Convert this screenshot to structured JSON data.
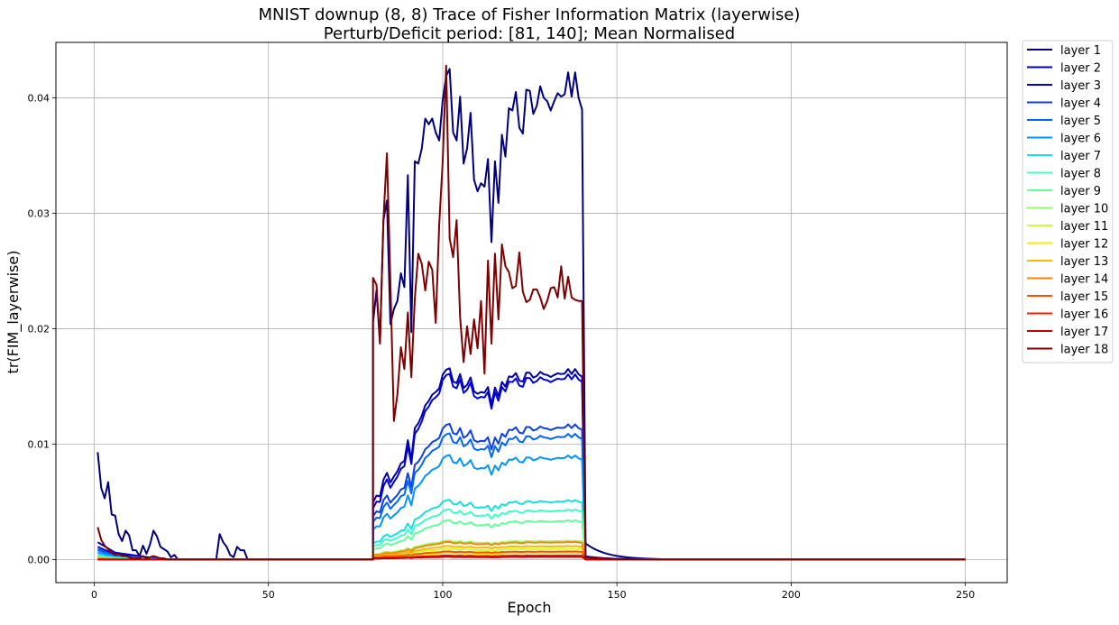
{
  "chart_data": {
    "type": "line",
    "title": "MNIST downup (8, 8) Trace of Fisher Information Matrix (layerwise)",
    "subtitle": "Perturb/Deficit period: [81, 140]; Mean Normalised",
    "xlabel": "Epoch",
    "ylabel": "tr(FIM_layerwise)",
    "xlim": [
      -11,
      262
    ],
    "ylim": [
      -0.002,
      0.0448
    ],
    "x_ticks": [
      0,
      50,
      100,
      150,
      200,
      250
    ],
    "x_tick_labels": [
      "0",
      "50",
      "100",
      "150",
      "200",
      "250"
    ],
    "y_ticks": [
      0.0,
      0.01,
      0.02,
      0.03,
      0.04
    ],
    "y_tick_labels": [
      "0.00",
      "0.01",
      "0.02",
      "0.03",
      "0.04"
    ],
    "grid": true,
    "legend_position": "outside-right",
    "deficit_period": [
      81,
      140
    ],
    "epochs": [
      1,
      250
    ],
    "series": [
      {
        "name": "layer 1",
        "color": "#00007f",
        "phase1": [
          [
            1,
            0.0093
          ],
          [
            2,
            0.0062
          ],
          [
            3,
            0.0053
          ],
          [
            4,
            0.0067
          ],
          [
            5,
            0.0039
          ],
          [
            6,
            0.0038
          ],
          [
            7,
            0.0022
          ],
          [
            8,
            0.0016
          ],
          [
            9,
            0.0025
          ],
          [
            10,
            0.0021
          ],
          [
            11,
            0.0008
          ],
          [
            12,
            0.0008
          ],
          [
            13,
            0.0003
          ],
          [
            14,
            0.0012
          ],
          [
            15,
            0.0005
          ],
          [
            16,
            0.0013
          ],
          [
            17,
            0.0025
          ],
          [
            18,
            0.002
          ],
          [
            19,
            0.0011
          ],
          [
            20,
            0.0009
          ],
          [
            21,
            0.0007
          ],
          [
            22,
            0.0002
          ],
          [
            23,
            0.0004
          ],
          [
            24,
            0.0
          ],
          [
            35,
            0.0
          ],
          [
            36,
            0.0022
          ],
          [
            37,
            0.0015
          ],
          [
            38,
            0.0011
          ],
          [
            39,
            0.0004
          ],
          [
            40,
            0.0002
          ],
          [
            41,
            0.0011
          ],
          [
            42,
            0.0008
          ],
          [
            43,
            0.0008
          ],
          [
            44,
            0.0
          ],
          [
            80,
            0.0
          ]
        ],
        "deficit": [
          0.0205,
          0.0233,
          0.0188,
          0.0294,
          0.0311,
          0.0204,
          0.0217,
          0.0224,
          0.0248,
          0.0236,
          0.0333,
          0.0197,
          0.0345,
          0.0343,
          0.0356,
          0.0382,
          0.0377,
          0.0382,
          0.037,
          0.0363,
          0.0398,
          0.0419,
          0.0425,
          0.037,
          0.0363,
          0.0401,
          0.0343,
          0.0356,
          0.0387,
          0.0329,
          0.0319,
          0.0326,
          0.0323,
          0.0347,
          0.0275,
          0.0345,
          0.0309,
          0.0368,
          0.0349,
          0.0391,
          0.0389,
          0.0405,
          0.0374,
          0.0369,
          0.0407,
          0.0406,
          0.0386,
          0.0393,
          0.041,
          0.04,
          0.0397,
          0.0389,
          0.0397,
          0.0404,
          0.0401,
          0.0403,
          0.0422,
          0.0401,
          0.0422,
          0.04,
          0.039
        ],
        "recovery_start": 0.0014
      },
      {
        "name": "layer 2",
        "color": "#0000ab",
        "phase1_base": 0.0015,
        "deficit_base": 0.0058,
        "plateau": 0.0141
      },
      {
        "name": "layer 3",
        "color": "#0000d8",
        "phase1_base": 0.0011,
        "deficit_base": 0.0052,
        "plateau": 0.0137
      },
      {
        "name": "layer 4",
        "color": "#0d3fe6",
        "phase1_base": 0.0009,
        "deficit_base": 0.0044,
        "plateau": 0.01
      },
      {
        "name": "layer 5",
        "color": "#0066ff",
        "phase1_base": 0.0008,
        "deficit_base": 0.0038,
        "plateau": 0.0093
      },
      {
        "name": "layer 6",
        "color": "#0096ff",
        "phase1_base": 0.0006,
        "deficit_base": 0.003,
        "plateau": 0.0077
      },
      {
        "name": "layer 7",
        "color": "#16e0e0",
        "phase1_base": 0.0004,
        "deficit_base": 0.0016,
        "plateau": 0.0044
      },
      {
        "name": "layer 8",
        "color": "#3cffc9",
        "phase1_base": 0.0003,
        "deficit_base": 0.0013,
        "plateau": 0.0037
      },
      {
        "name": "layer 9",
        "color": "#62ff9c",
        "phase1_base": 0.0002,
        "deficit_base": 0.001,
        "plateau": 0.0029
      },
      {
        "name": "layer 10",
        "color": "#93ff66",
        "phase1_base": 0.0001,
        "deficit_base": 0.0005,
        "plateau": 0.0014
      },
      {
        "name": "layer 11",
        "color": "#c9ff2f",
        "phase1_base": 0.0001,
        "deficit_base": 0.0003,
        "plateau": 0.0008
      },
      {
        "name": "layer 12",
        "color": "#ffe800",
        "phase1_base": 0.0001,
        "deficit_base": 0.0002,
        "plateau": 0.0005
      },
      {
        "name": "layer 13",
        "color": "#ffb600",
        "phase1_base": 0.0001,
        "deficit_base": 0.0003,
        "plateau": 0.001
      },
      {
        "name": "layer 14",
        "color": "#ff8400",
        "phase1_base": 0.0001,
        "deficit_base": 0.0004,
        "plateau": 0.0013
      },
      {
        "name": "layer 15",
        "color": "#ff5000",
        "phase1_base": 0.0,
        "deficit_base": 0.0002,
        "plateau": 0.0006
      },
      {
        "name": "layer 16",
        "color": "#ef1c00",
        "phase1_base": 0.0,
        "deficit_base": 0.0001,
        "plateau": 0.0003
      },
      {
        "name": "layer 17",
        "color": "#c30000",
        "phase1_base": 0.0,
        "deficit_base": 0.0001,
        "plateau": 0.0002
      },
      {
        "name": "layer 18",
        "color": "#7f0000",
        "phase1": [
          [
            1,
            0.0028
          ],
          [
            2,
            0.0017
          ],
          [
            3,
            0.0012
          ],
          [
            4,
            0.0009
          ],
          [
            5,
            0.0006
          ],
          [
            6,
            0.0004
          ],
          [
            7,
            0.0005
          ],
          [
            8,
            0.0003
          ],
          [
            9,
            0.0003
          ],
          [
            10,
            0.0002
          ],
          [
            11,
            0.0001
          ],
          [
            12,
            0.0001
          ],
          [
            13,
            0.0001
          ],
          [
            14,
            0.0003
          ],
          [
            15,
            0.0001
          ],
          [
            16,
            0.0002
          ],
          [
            17,
            0.0003
          ],
          [
            18,
            0.0002
          ],
          [
            19,
            0.0001
          ],
          [
            20,
            0.0001
          ],
          [
            21,
            0.0
          ],
          [
            80,
            0.0
          ]
        ],
        "deficit": [
          0.0244,
          0.0238,
          0.0187,
          0.0295,
          0.0352,
          0.0239,
          0.012,
          0.0143,
          0.0184,
          0.0165,
          0.0214,
          0.0158,
          0.0226,
          0.0265,
          0.0256,
          0.0233,
          0.0258,
          0.0251,
          0.0205,
          0.029,
          0.0345,
          0.0428,
          0.0278,
          0.0262,
          0.0294,
          0.021,
          0.0171,
          0.0202,
          0.0178,
          0.0208,
          0.0183,
          0.0224,
          0.0161,
          0.0259,
          0.0187,
          0.0265,
          0.0208,
          0.0273,
          0.0254,
          0.0249,
          0.0235,
          0.0237,
          0.0266,
          0.0232,
          0.0223,
          0.0225,
          0.0234,
          0.0234,
          0.0227,
          0.0217,
          0.0224,
          0.0235,
          0.0236,
          0.0227,
          0.0254,
          0.0226,
          0.0245,
          0.0227,
          0.0225,
          0.0224,
          0.0224
        ],
        "recovery_start": 0.0002
      }
    ]
  }
}
